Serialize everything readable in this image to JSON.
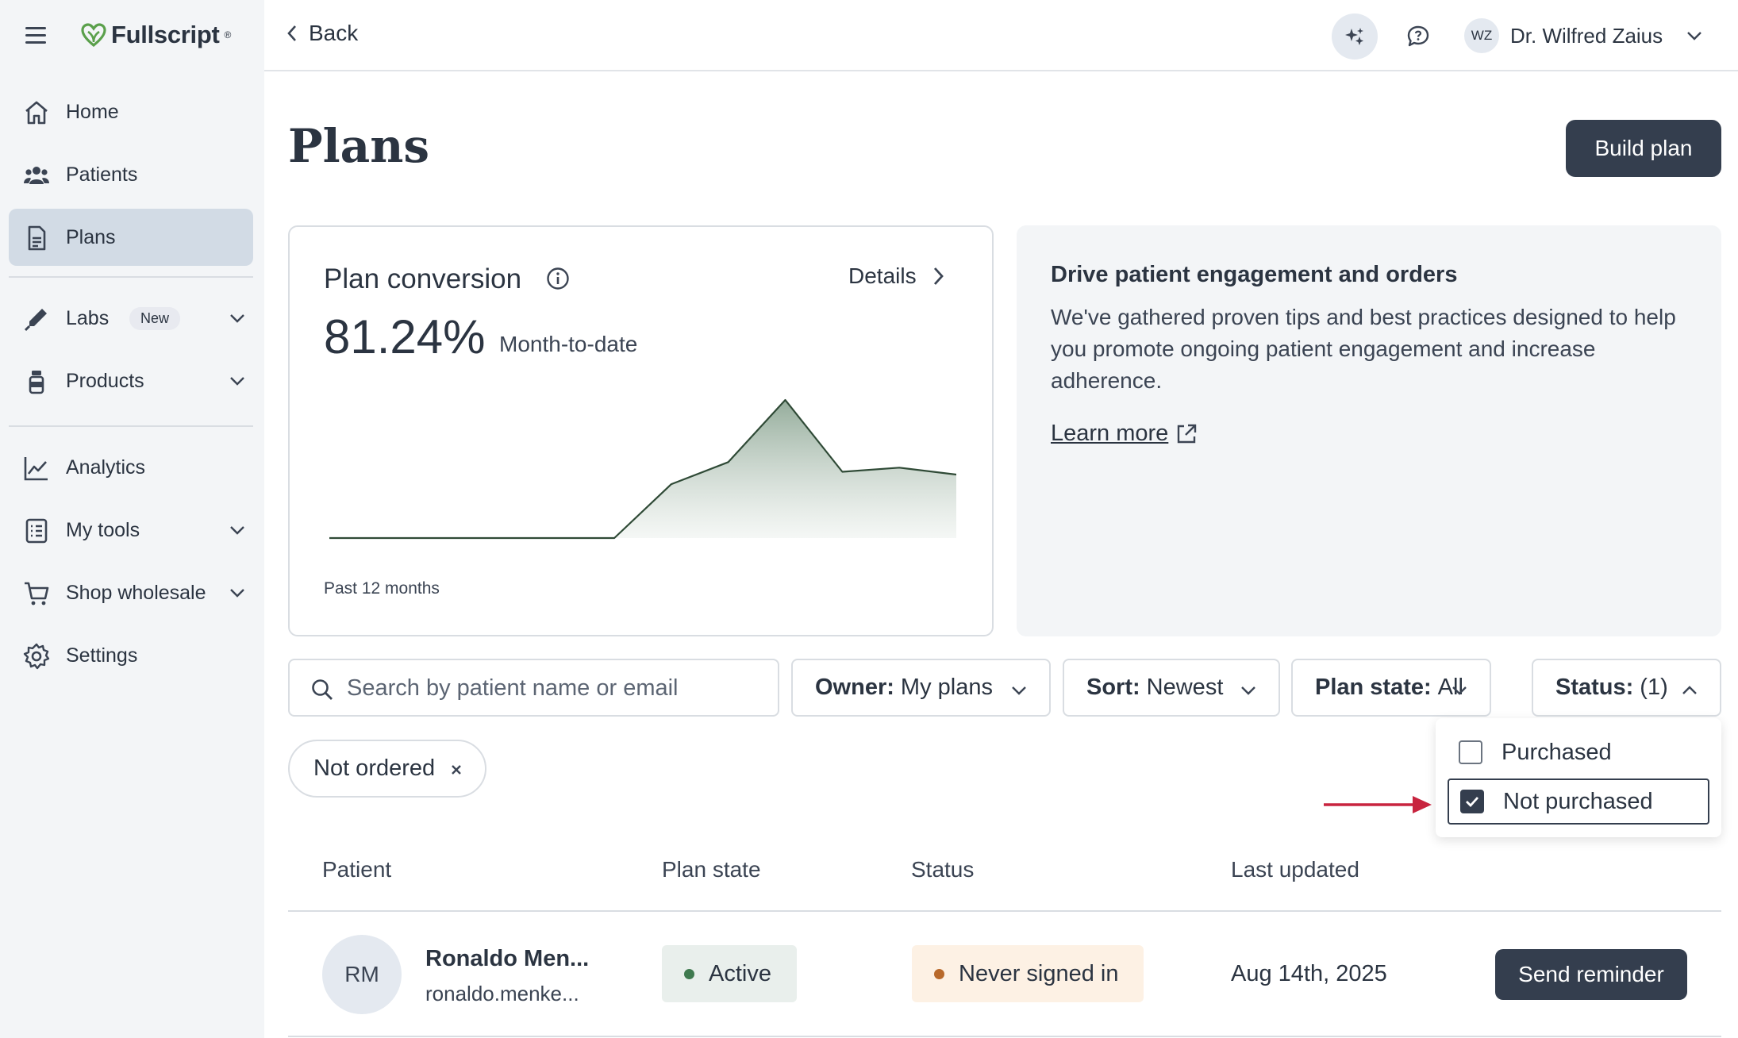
{
  "brand": {
    "name": "Fullscript",
    "trademark": "®",
    "logo_color": "#5aa04b"
  },
  "sidebar": {
    "items": [
      {
        "label": "Home",
        "icon": "home-icon"
      },
      {
        "label": "Patients",
        "icon": "users-icon"
      },
      {
        "label": "Plans",
        "icon": "document-icon",
        "active": true
      },
      {
        "label": "Labs",
        "icon": "pipette-icon",
        "badge": "New"
      },
      {
        "label": "Products",
        "icon": "bottle-icon"
      },
      {
        "label": "Analytics",
        "icon": "line-chart-icon"
      },
      {
        "label": "My tools",
        "icon": "checklist-icon"
      },
      {
        "label": "Shop wholesale",
        "icon": "cart-icon"
      },
      {
        "label": "Settings",
        "icon": "gear-icon"
      }
    ]
  },
  "topbar": {
    "back_label": "Back",
    "user_initials": "WZ",
    "user_name": "Dr. Wilfred Zaius"
  },
  "page": {
    "title": "Plans",
    "build_plan_label": "Build plan"
  },
  "conversion": {
    "title": "Plan conversion",
    "details_label": "Details",
    "value": "81.24%",
    "period": "Month-to-date",
    "footnote": "Past 12 months"
  },
  "chart_data": {
    "type": "area",
    "title": "",
    "xlabel": "",
    "ylabel": "",
    "x": [
      1,
      2,
      3,
      4,
      5,
      6,
      7,
      8,
      9,
      10,
      11,
      12
    ],
    "values": [
      0,
      0,
      0,
      0,
      0,
      0,
      39,
      55,
      100,
      48,
      51,
      46
    ],
    "ylim": [
      0,
      100
    ],
    "grid": false,
    "fill_color": "#8fa896",
    "line_color": "#2f4a36"
  },
  "engagement": {
    "title": "Drive patient engagement and orders",
    "body": "We've gathered proven tips and best practices designed to help you promote ongoing patient engagement and increase adherence.",
    "link_label": "Learn more"
  },
  "filters": {
    "search_placeholder": "Search by patient name or email",
    "owner": {
      "key": "Owner:",
      "value": "My plans"
    },
    "sort": {
      "key": "Sort:",
      "value": "Newest"
    },
    "plan_state": {
      "key": "Plan state:",
      "value": "All"
    },
    "status": {
      "key": "Status:",
      "value": "(1)"
    },
    "active_chip": "Not ordered",
    "status_options": [
      {
        "label": "Purchased",
        "checked": false
      },
      {
        "label": "Not purchased",
        "checked": true
      }
    ]
  },
  "table": {
    "columns": [
      "Patient",
      "Plan state",
      "Status",
      "Last updated"
    ],
    "rows": [
      {
        "initials": "RM",
        "name": "Ronaldo Men...",
        "email": "ronaldo.menke...",
        "plan_state": "Active",
        "status": "Never signed in",
        "last_updated": "Aug 14th, 2025",
        "action": "Send reminder"
      }
    ]
  },
  "colors": {
    "active_pill_bg": "#e9efec",
    "active_dot": "#3f7a4f",
    "status_pill_bg": "#fdf1e4",
    "status_dot": "#b8692b",
    "arrow": "#c8243f",
    "primary_button": "#343e4e"
  }
}
